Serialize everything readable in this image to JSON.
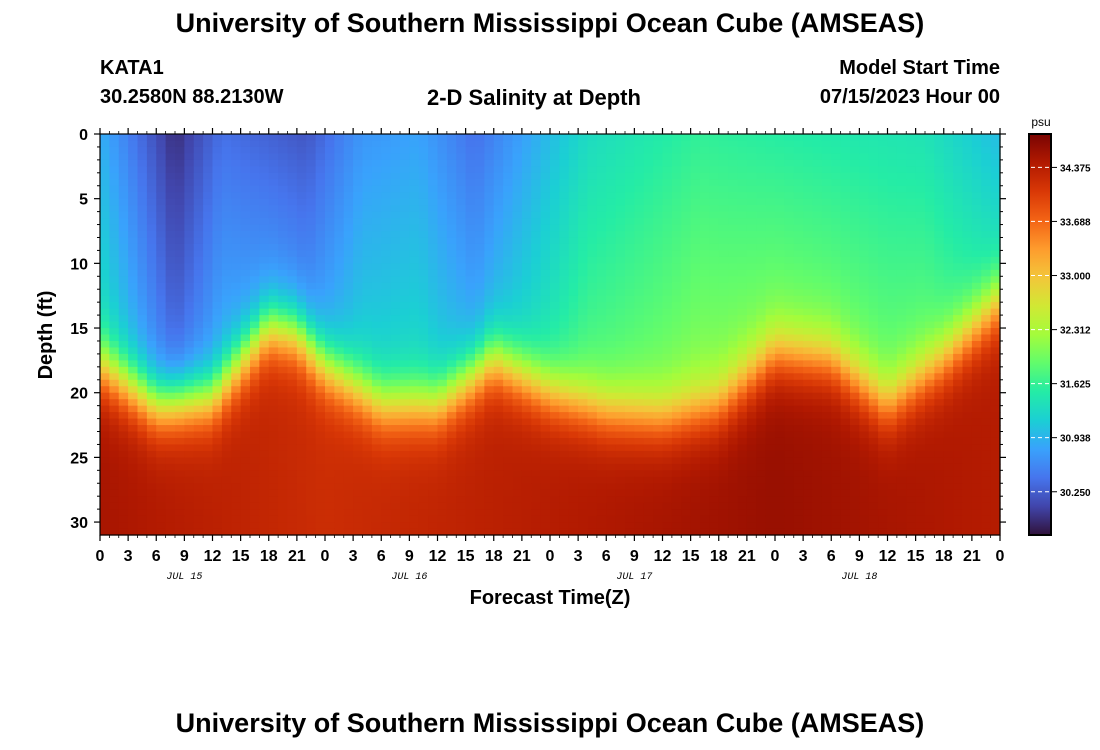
{
  "header": {
    "title": "University of Southern Mississippi Ocean Cube (AMSEAS)",
    "station_id": "KATA1",
    "station_coords": "30.2580N  88.2130W",
    "plot_subtitle": "2-D Salinity at Depth",
    "model_start_label": "Model Start Time",
    "model_start_value": "07/15/2023 Hour 00"
  },
  "footer": {
    "title": "University of Southern Mississippi Ocean Cube (AMSEAS)"
  },
  "chart_data": {
    "type": "heatmap",
    "title": "2-D Salinity at Depth",
    "xlabel": "Forecast Time(Z)",
    "ylabel": "Depth (ft)",
    "x_tick_labels": [
      "0",
      "3",
      "6",
      "9",
      "12",
      "15",
      "18",
      "21",
      "0",
      "3",
      "6",
      "9",
      "12",
      "15",
      "18",
      "21",
      "0",
      "3",
      "6",
      "9",
      "12",
      "15",
      "18",
      "21",
      "0",
      "3",
      "6",
      "9",
      "12",
      "15",
      "18",
      "21",
      "0"
    ],
    "x_day_labels": [
      {
        "label": "JUL 15",
        "hour": 9
      },
      {
        "label": "JUL 16",
        "hour": 33
      },
      {
        "label": "JUL 17",
        "hour": 57
      },
      {
        "label": "JUL 18",
        "hour": 81
      }
    ],
    "xlim_hours": [
      0,
      96
    ],
    "y_ticks": [
      0,
      5,
      10,
      15,
      20,
      25,
      30
    ],
    "ylim_ft": [
      0,
      31
    ],
    "y_inverted": true,
    "colorbar": {
      "unit": "psu",
      "range": [
        29.7,
        34.8
      ],
      "ticks": [
        "34.375",
        "33.688",
        "33.000",
        "32.312",
        "31.625",
        "30.938",
        "30.250"
      ],
      "colors": [
        "#30123b",
        "#4145ab",
        "#4675ed",
        "#39a2fc",
        "#1bcfd4",
        "#24eca6",
        "#61fc6c",
        "#a4fc3b",
        "#d1e834",
        "#f3c63a",
        "#fe9b2d",
        "#f36315",
        "#d93806",
        "#b11901",
        "#7a0402"
      ]
    },
    "series": [
      {
        "name": "surface_layer",
        "hours": [
          0,
          8,
          13,
          22,
          28,
          34,
          40,
          52,
          64,
          76,
          88,
          96
        ],
        "depth_ft": [
          0,
          0,
          0,
          0,
          0,
          0,
          0,
          0,
          0,
          0,
          0,
          0
        ],
        "salinity_psu": [
          30.9,
          29.9,
          30.4,
          30.2,
          30.7,
          30.8,
          30.4,
          31.3,
          31.6,
          31.5,
          31.4,
          31.0
        ]
      },
      {
        "name": "pycnocline_depth_ft",
        "hours": [
          0,
          6,
          12,
          18,
          21,
          24,
          30,
          36,
          42,
          48,
          54,
          60,
          66,
          72,
          78,
          84,
          90,
          96
        ],
        "depth_ft": [
          18,
          21,
          20.5,
          15,
          15.5,
          18,
          21,
          21,
          17.5,
          20,
          21.5,
          22,
          21,
          17,
          17.5,
          21,
          17.5,
          13
        ]
      },
      {
        "name": "bottom_layer",
        "hours": [
          0,
          24,
          48,
          72,
          96
        ],
        "depth_ft": [
          31,
          31,
          31,
          31,
          31
        ],
        "salinity_psu": [
          34.5,
          34.2,
          34.4,
          34.6,
          34.4
        ]
      }
    ]
  }
}
